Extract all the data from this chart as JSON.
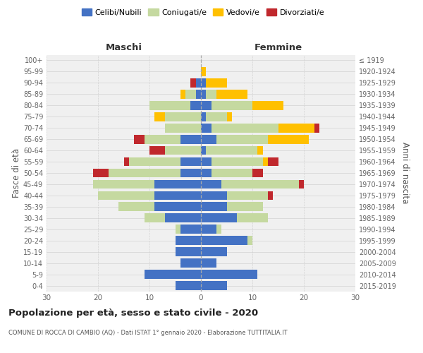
{
  "age_groups": [
    "0-4",
    "5-9",
    "10-14",
    "15-19",
    "20-24",
    "25-29",
    "30-34",
    "35-39",
    "40-44",
    "45-49",
    "50-54",
    "55-59",
    "60-64",
    "65-69",
    "70-74",
    "75-79",
    "80-84",
    "85-89",
    "90-94",
    "95-99",
    "100+"
  ],
  "birth_years": [
    "2015-2019",
    "2010-2014",
    "2005-2009",
    "2000-2004",
    "1995-1999",
    "1990-1994",
    "1985-1989",
    "1980-1984",
    "1975-1979",
    "1970-1974",
    "1965-1969",
    "1960-1964",
    "1955-1959",
    "1950-1954",
    "1945-1949",
    "1940-1944",
    "1935-1939",
    "1930-1934",
    "1925-1929",
    "1920-1924",
    "≤ 1919"
  ],
  "colors": {
    "celibi": "#4472c4",
    "coniugati": "#c5d9a0",
    "vedovi": "#ffc000",
    "divorziati": "#c0282d"
  },
  "maschi": {
    "celibi": [
      5,
      11,
      4,
      5,
      5,
      4,
      7,
      9,
      9,
      9,
      4,
      4,
      0,
      4,
      0,
      0,
      2,
      1,
      1,
      0,
      0
    ],
    "coniugati": [
      0,
      0,
      0,
      0,
      0,
      1,
      4,
      7,
      11,
      12,
      14,
      10,
      7,
      7,
      7,
      7,
      8,
      2,
      0,
      0,
      0
    ],
    "vedovi": [
      0,
      0,
      0,
      0,
      0,
      0,
      0,
      0,
      0,
      0,
      0,
      0,
      0,
      0,
      0,
      2,
      0,
      1,
      0,
      0,
      0
    ],
    "divorziati": [
      0,
      0,
      0,
      0,
      0,
      0,
      0,
      0,
      0,
      0,
      3,
      1,
      3,
      2,
      0,
      0,
      0,
      0,
      1,
      0,
      0
    ]
  },
  "femmine": {
    "celibi": [
      5,
      11,
      3,
      5,
      9,
      3,
      7,
      5,
      5,
      4,
      2,
      2,
      1,
      3,
      2,
      1,
      2,
      1,
      1,
      0,
      0
    ],
    "coniugati": [
      0,
      0,
      0,
      0,
      1,
      1,
      6,
      7,
      8,
      15,
      8,
      10,
      10,
      10,
      13,
      4,
      8,
      2,
      0,
      0,
      0
    ],
    "vedovi": [
      0,
      0,
      0,
      0,
      0,
      0,
      0,
      0,
      0,
      0,
      0,
      1,
      1,
      8,
      7,
      1,
      6,
      6,
      4,
      1,
      0
    ],
    "divorziati": [
      0,
      0,
      0,
      0,
      0,
      0,
      0,
      0,
      1,
      1,
      2,
      2,
      0,
      0,
      1,
      0,
      0,
      0,
      0,
      0,
      0
    ]
  },
  "title": "Popolazione per età, sesso e stato civile - 2020",
  "subtitle": "COMUNE DI ROCCA DI CAMBIO (AQ) - Dati ISTAT 1° gennaio 2020 - Elaborazione TUTTITALIA.IT",
  "ylabel_left": "Fasce di età",
  "ylabel_right": "Anni di nascita",
  "xlabel_left": "Maschi",
  "xlabel_right": "Femmine",
  "xlim": 30,
  "bg_color": "#f0f0f0",
  "grid_color": "#cccccc"
}
